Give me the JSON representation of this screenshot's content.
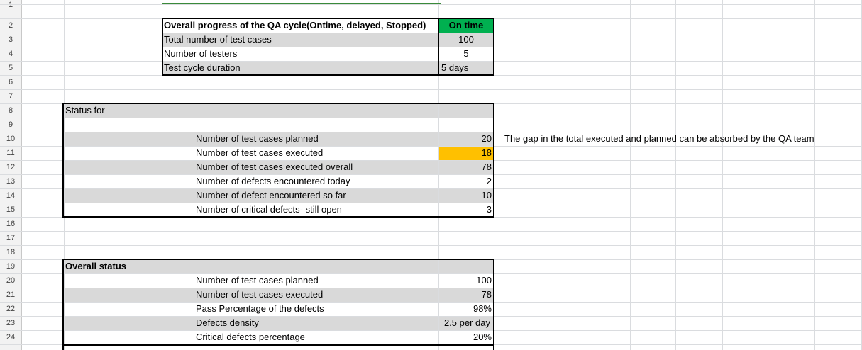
{
  "row_numbers": [
    "1",
    "2",
    "3",
    "4",
    "5",
    "6",
    "7",
    "8",
    "9",
    "10",
    "11",
    "12",
    "13",
    "14",
    "15",
    "16",
    "17",
    "18",
    "19",
    "20",
    "21",
    "22",
    "23",
    "24"
  ],
  "summary": {
    "header_label": "Overall progress of the QA cycle(Ontime, delayed, Stopped)",
    "header_value": "On time",
    "rows": [
      {
        "label": "Total number of test cases",
        "value": "100"
      },
      {
        "label": "Number of testers",
        "value": "5"
      },
      {
        "label": "Test cycle duration",
        "value": "5 days"
      }
    ]
  },
  "daily_status": {
    "title": "Status for",
    "rows": [
      {
        "label": "Number of test cases planned",
        "value": "20"
      },
      {
        "label": "Number of test cases executed",
        "value": "18"
      },
      {
        "label": "Number of test cases executed overall",
        "value": "78"
      },
      {
        "label": "Number of defects encountered today",
        "value": "2"
      },
      {
        "label": "Number of defect encountered so far",
        "value": "10"
      },
      {
        "label": "Number of critical defects- still open",
        "value": "3"
      }
    ],
    "note": "The gap in the total executed and planned can be absorbed by the QA team"
  },
  "overall_status": {
    "title": "Overall status",
    "rows": [
      {
        "label": "Number of test cases planned",
        "value": "100"
      },
      {
        "label": "Number of test cases executed",
        "value": "78"
      },
      {
        "label": "Pass Percentage of the defects",
        "value": "98%"
      },
      {
        "label": "Defects density",
        "value": "2.5 per day"
      },
      {
        "label": "Critical defects percentage",
        "value": "20%"
      }
    ]
  },
  "colors": {
    "on_time_fill": "#00b050",
    "highlight_fill": "#ffc000",
    "band_fill": "#d9d9d9",
    "grid": "#dadcdf"
  }
}
